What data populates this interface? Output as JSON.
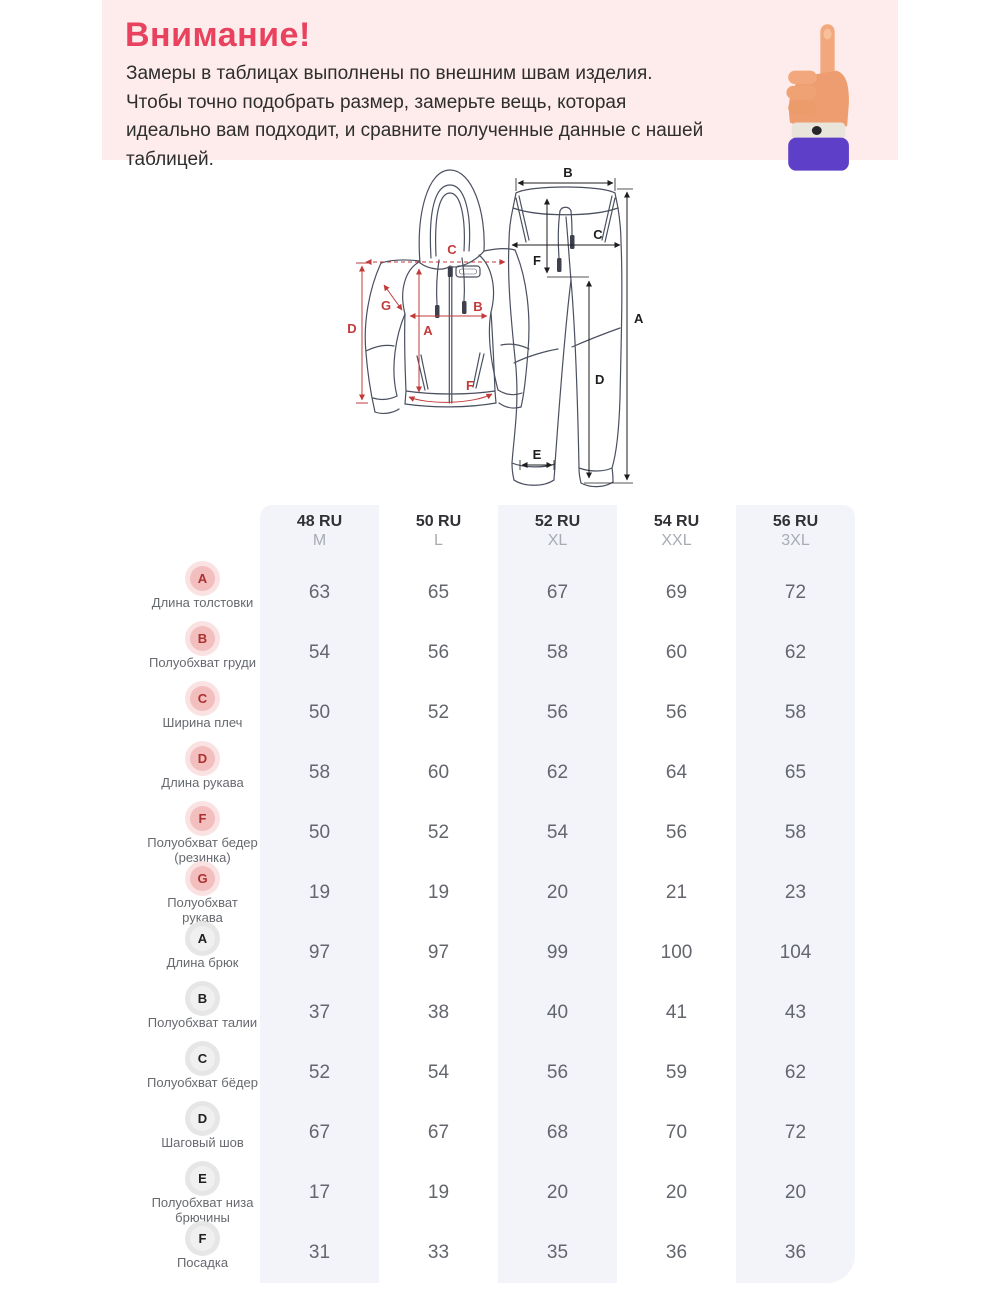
{
  "banner": {
    "title": "Внимание!",
    "text_line1": "Замеры в таблицах выполнены по внешним швам изделия.",
    "text_line2": "Чтобы точно подобрать размер, замерьте вещь, которая идеально вам подходит, и сравните полученные данные с нашей таблицей.",
    "hand_icon": "pointing-finger-3d",
    "colors": {
      "background": "#fdeceb",
      "title": "#e8425e",
      "sleeve_purple": "#5d40c7",
      "cuff_white": "#e9e5da"
    }
  },
  "diagram": {
    "hoodie_labels": {
      "A": "A",
      "B": "B",
      "C": "C",
      "D": "D",
      "F": "F",
      "G": "G"
    },
    "pants_labels": {
      "A": "A",
      "B": "B",
      "C": "C",
      "D": "D",
      "E": "E",
      "F": "F"
    },
    "colors": {
      "outline": "#4b5060",
      "hoodie_annotation": "#c23b3b",
      "pants_annotation": "#1e1e1e"
    }
  },
  "size_table": {
    "columns": [
      {
        "ru": "48 RU",
        "intl": "M"
      },
      {
        "ru": "50 RU",
        "intl": "L"
      },
      {
        "ru": "52 RU",
        "intl": "XL"
      },
      {
        "ru": "54 RU",
        "intl": "XXL"
      },
      {
        "ru": "56 RU",
        "intl": "3XL"
      }
    ],
    "rows": [
      {
        "letter": "A",
        "group": "hoodie",
        "label": "Длина толстовки",
        "values": [
          63,
          65,
          67,
          69,
          72
        ]
      },
      {
        "letter": "B",
        "group": "hoodie",
        "label": "Полуобхват груди",
        "values": [
          54,
          56,
          58,
          60,
          62
        ]
      },
      {
        "letter": "C",
        "group": "hoodie",
        "label": "Ширина плеч",
        "values": [
          50,
          52,
          56,
          56,
          58
        ]
      },
      {
        "letter": "D",
        "group": "hoodie",
        "label": "Длина рукава",
        "values": [
          58,
          60,
          62,
          64,
          65
        ]
      },
      {
        "letter": "F",
        "group": "hoodie",
        "label": "Полуобхват бедер (резинка)",
        "values": [
          50,
          52,
          54,
          56,
          58
        ]
      },
      {
        "letter": "G",
        "group": "hoodie",
        "label": "Полуобхват рукава",
        "values": [
          19,
          19,
          20,
          21,
          23
        ]
      },
      {
        "letter": "A",
        "group": "pants",
        "label": "Длина брюк",
        "values": [
          97,
          97,
          99,
          100,
          104
        ]
      },
      {
        "letter": "B",
        "group": "pants",
        "label": "Полуобхват талии",
        "values": [
          37,
          38,
          40,
          41,
          43
        ]
      },
      {
        "letter": "C",
        "group": "pants",
        "label": "Полуобхват бёдер",
        "values": [
          52,
          54,
          56,
          59,
          62
        ]
      },
      {
        "letter": "D",
        "group": "pants",
        "label": "Шаговый шов",
        "values": [
          67,
          67,
          68,
          70,
          72
        ]
      },
      {
        "letter": "E",
        "group": "pants",
        "label": "Полуобхват низа брючины",
        "values": [
          17,
          19,
          20,
          20,
          20
        ]
      },
      {
        "letter": "F",
        "group": "pants",
        "label": "Посадка",
        "values": [
          31,
          33,
          35,
          36,
          36
        ]
      }
    ],
    "colors": {
      "column_stripe": "#f2f4f9",
      "hoodie_badge": "#f2bebe",
      "pants_badge": "#f0f0f1"
    }
  }
}
